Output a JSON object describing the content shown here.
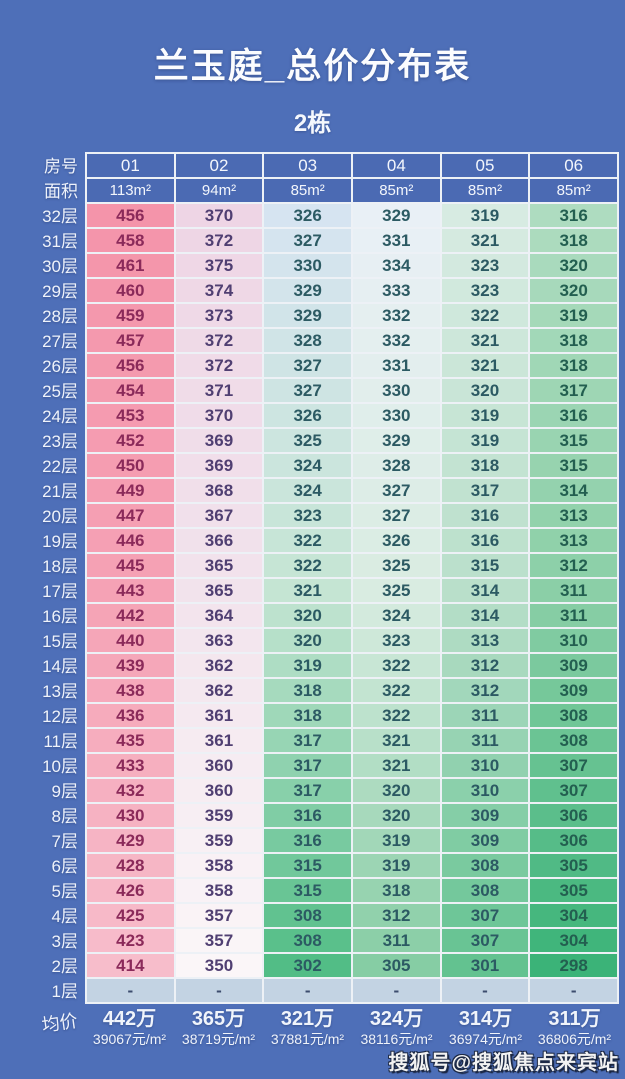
{
  "title": "兰玉庭_总价分布表",
  "subtitle": "2栋",
  "watermark": "搜狐号@搜狐焦点来宾站",
  "table_labels": {
    "unit_row": "房号",
    "area_row": "面积",
    "average_row": "均价"
  },
  "chart_data": {
    "type": "heatmap",
    "title": "兰玉庭_总价分布表",
    "subtitle": "2栋",
    "value_unit": "万元 (total price)",
    "columns": [
      "01",
      "02",
      "03",
      "04",
      "05",
      "06"
    ],
    "areas": [
      "113m²",
      "94m²",
      "85m²",
      "85m²",
      "85m²",
      "85m²"
    ],
    "floors": [
      "32层",
      "31层",
      "30层",
      "29层",
      "28层",
      "27层",
      "26层",
      "25层",
      "24层",
      "23层",
      "22层",
      "21层",
      "20层",
      "19层",
      "18层",
      "17层",
      "16层",
      "15层",
      "14层",
      "13层",
      "12层",
      "11层",
      "10层",
      "9层",
      "8层",
      "7层",
      "6层",
      "5层",
      "4层",
      "3层",
      "2层",
      "1层"
    ],
    "matrix": [
      [
        456,
        370,
        326,
        329,
        319,
        316
      ],
      [
        458,
        372,
        327,
        331,
        321,
        318
      ],
      [
        461,
        375,
        330,
        334,
        323,
        320
      ],
      [
        460,
        374,
        329,
        333,
        323,
        320
      ],
      [
        459,
        373,
        329,
        332,
        322,
        319
      ],
      [
        457,
        372,
        328,
        332,
        321,
        318
      ],
      [
        456,
        372,
        327,
        331,
        321,
        318
      ],
      [
        454,
        371,
        327,
        330,
        320,
        317
      ],
      [
        453,
        370,
        326,
        330,
        319,
        316
      ],
      [
        452,
        369,
        325,
        329,
        319,
        315
      ],
      [
        450,
        369,
        324,
        328,
        318,
        315
      ],
      [
        449,
        368,
        324,
        327,
        317,
        314
      ],
      [
        447,
        367,
        323,
        327,
        316,
        313
      ],
      [
        446,
        366,
        322,
        326,
        316,
        313
      ],
      [
        445,
        365,
        322,
        325,
        315,
        312
      ],
      [
        443,
        365,
        321,
        325,
        314,
        311
      ],
      [
        442,
        364,
        320,
        324,
        314,
        311
      ],
      [
        440,
        363,
        320,
        323,
        313,
        310
      ],
      [
        439,
        362,
        319,
        322,
        312,
        309
      ],
      [
        438,
        362,
        318,
        322,
        312,
        309
      ],
      [
        436,
        361,
        318,
        322,
        311,
        308
      ],
      [
        435,
        361,
        317,
        321,
        311,
        308
      ],
      [
        433,
        360,
        317,
        321,
        310,
        307
      ],
      [
        432,
        360,
        317,
        320,
        310,
        307
      ],
      [
        430,
        359,
        316,
        320,
        309,
        306
      ],
      [
        429,
        359,
        316,
        319,
        309,
        306
      ],
      [
        428,
        358,
        315,
        319,
        308,
        305
      ],
      [
        426,
        358,
        315,
        318,
        308,
        305
      ],
      [
        425,
        357,
        308,
        312,
        307,
        304
      ],
      [
        423,
        357,
        308,
        311,
        307,
        304
      ],
      [
        414,
        350,
        302,
        305,
        301,
        298
      ],
      [
        "-",
        "-",
        "-",
        "-",
        "-",
        "-"
      ]
    ],
    "averages": [
      {
        "total": "442万",
        "per_sqm": "39067元/m²"
      },
      {
        "total": "365万",
        "per_sqm": "38719元/m²"
      },
      {
        "total": "321万",
        "per_sqm": "37881元/m²"
      },
      {
        "total": "324万",
        "per_sqm": "38116元/m²"
      },
      {
        "total": "314万",
        "per_sqm": "36974元/m²"
      },
      {
        "total": "311万",
        "per_sqm": "36806元/m²"
      }
    ]
  },
  "colors": {
    "page_background": "#4e6fb8",
    "header_cell_background": "#4b6ab3",
    "grid_border": "#edf1f6",
    "column_ramps": [
      [
        "#f494aa",
        "#f5a2b5",
        "#f7bdcb"
      ],
      [
        "#eed5e5",
        "#f2e3ec",
        "#fbf6f8"
      ],
      [
        "#d6e4f1",
        "#c5e5d3",
        "#52bd86"
      ],
      [
        "#e9f0f6",
        "#d9ece1",
        "#86cda4"
      ],
      [
        "#d7ebe2",
        "#b9dfca",
        "#63c290"
      ],
      [
        "#aedcc0",
        "#8bcfa7",
        "#3bb378"
      ]
    ],
    "column_text": [
      "#8b2a5a",
      "#503f72",
      "#2c5a63",
      "#2c5a63",
      "#2c5a63",
      "#235f50"
    ],
    "floor1_background": "#c3d3e3",
    "floor1_text": "#3c4c6e"
  }
}
